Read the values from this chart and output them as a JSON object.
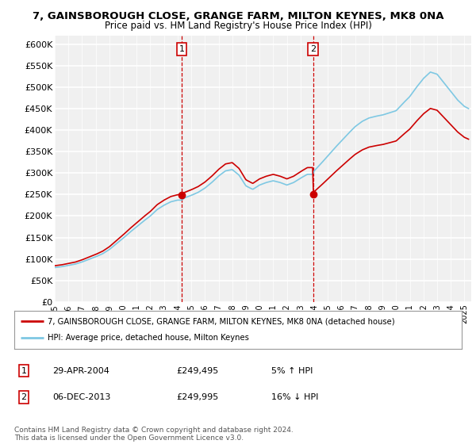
{
  "title1": "7, GAINSBOROUGH CLOSE, GRANGE FARM, MILTON KEYNES, MK8 0NA",
  "title2": "Price paid vs. HM Land Registry's House Price Index (HPI)",
  "ytick_values": [
    0,
    50000,
    100000,
    150000,
    200000,
    250000,
    300000,
    350000,
    400000,
    450000,
    500000,
    550000,
    600000
  ],
  "ylim": [
    0,
    620000
  ],
  "legend_line1": "7, GAINSBOROUGH CLOSE, GRANGE FARM, MILTON KEYNES, MK8 0NA (detached house)",
  "legend_line2": "HPI: Average price, detached house, Milton Keynes",
  "sale1_date": "29-APR-2004",
  "sale1_price": 249495,
  "sale1_hpi": "5% ↑ HPI",
  "sale1_year": 2004.29,
  "sale2_date": "06-DEC-2013",
  "sale2_price": 249995,
  "sale2_hpi": "16% ↓ HPI",
  "sale2_year": 2013.92,
  "footnote": "Contains HM Land Registry data © Crown copyright and database right 2024.\nThis data is licensed under the Open Government Licence v3.0.",
  "hpi_color": "#7ec8e3",
  "price_color": "#cc0000",
  "vline_color": "#cc0000",
  "bg_color": "#ffffff",
  "plot_bg_color": "#f0f0f0"
}
